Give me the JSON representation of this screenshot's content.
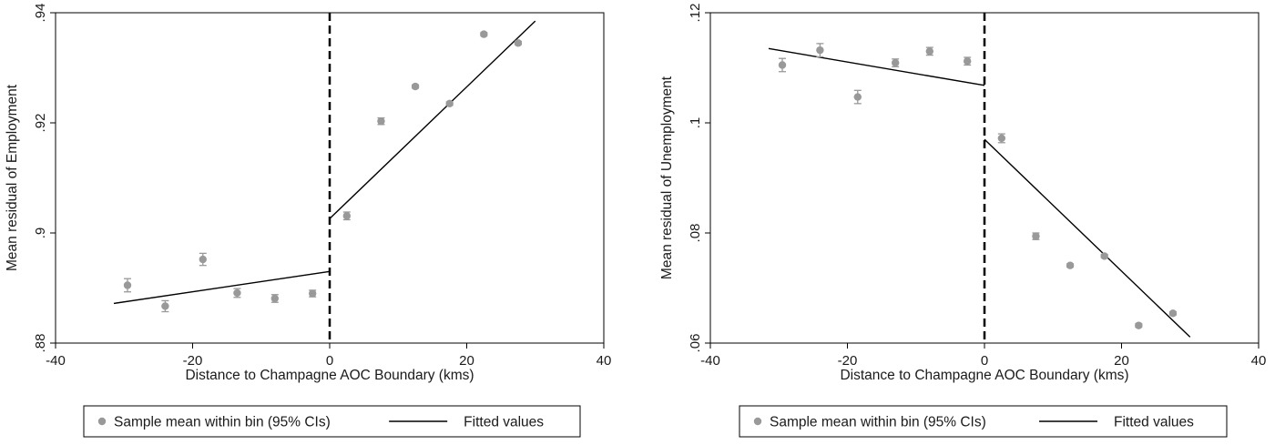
{
  "chart_data": [
    {
      "type": "scatter",
      "xlabel": "Distance to Champagne AOC Boundary (kms)",
      "ylabel": "Mean residual of Employment",
      "xlim": [
        -40,
        40
      ],
      "ylim": [
        0.88,
        0.94
      ],
      "x_ticks": [
        -40,
        -20,
        0,
        20,
        40
      ],
      "x_tick_labels": [
        "-40",
        "-20",
        "0",
        "20",
        "40"
      ],
      "y_ticks": [
        0.88,
        0.9,
        0.92,
        0.94
      ],
      "y_tick_labels": [
        ".88",
        ".9",
        ".92",
        ".94"
      ],
      "cutoff": 0,
      "series": [
        {
          "name": "Sample mean within bin (95% CIs)",
          "kind": "points",
          "color": "#999999",
          "x": [
            -29.5,
            -24,
            -18.5,
            -13.5,
            -8,
            -2.5,
            2.5,
            7.5,
            12.5,
            17.5,
            22.5,
            27.5
          ],
          "y": [
            0.8905,
            0.8867,
            0.8952,
            0.8891,
            0.8881,
            0.889,
            0.9031,
            0.9203,
            0.9266,
            0.9235,
            0.9361,
            0.9345
          ],
          "ci_low": [
            0.8893,
            0.8857,
            0.8941,
            0.8883,
            0.8874,
            0.8884,
            0.9024,
            0.9197,
            0.9263,
            0.9232,
            0.9358,
            0.9342
          ],
          "ci_high": [
            0.8917,
            0.8877,
            0.8963,
            0.8899,
            0.8888,
            0.8896,
            0.9038,
            0.9209,
            0.9269,
            0.9238,
            0.9364,
            0.9348
          ]
        },
        {
          "name": "Fitted values",
          "kind": "lines",
          "color": "#000000",
          "segments": [
            [
              [
                -31.5,
                0.8872
              ],
              [
                0,
                0.893
              ]
            ],
            [
              [
                0,
                0.9026
              ],
              [
                30,
                0.9385
              ]
            ]
          ]
        }
      ],
      "legend_position": "bottom"
    },
    {
      "type": "scatter",
      "xlabel": "Distance to Champagne AOC Boundary (kms)",
      "ylabel": "Mean residual of Unemployment",
      "xlim": [
        -40,
        40
      ],
      "ylim": [
        0.06,
        0.12
      ],
      "x_ticks": [
        -40,
        -20,
        0,
        20,
        40
      ],
      "x_tick_labels": [
        "-40",
        "-20",
        "0",
        "20",
        "40"
      ],
      "y_ticks": [
        0.06,
        0.08,
        0.1,
        0.12
      ],
      "y_tick_labels": [
        ".06",
        ".08",
        ".1",
        ".12"
      ],
      "cutoff": 0,
      "series": [
        {
          "name": "Sample mean within bin (95% CIs)",
          "kind": "points",
          "color": "#999999",
          "x": [
            -29.5,
            -24,
            -18.5,
            -13,
            -8,
            -2.5,
            2.5,
            7.5,
            12.5,
            17.5,
            22.5,
            27.5
          ],
          "y": [
            0.1105,
            0.1132,
            0.1047,
            0.1109,
            0.113,
            0.1112,
            0.0972,
            0.0794,
            0.0741,
            0.0758,
            0.0632,
            0.0654
          ],
          "ci_low": [
            0.1093,
            0.112,
            0.1035,
            0.1102,
            0.1123,
            0.1105,
            0.0964,
            0.0788,
            0.0738,
            0.0755,
            0.0629,
            0.0651
          ],
          "ci_high": [
            0.1117,
            0.1144,
            0.1059,
            0.1116,
            0.1137,
            0.1119,
            0.098,
            0.08,
            0.0744,
            0.0761,
            0.0635,
            0.0657
          ]
        },
        {
          "name": "Fitted values",
          "kind": "lines",
          "color": "#000000",
          "segments": [
            [
              [
                -31.5,
                0.1135
              ],
              [
                0,
                0.1068
              ]
            ],
            [
              [
                0,
                0.097
              ],
              [
                30,
                0.0611
              ]
            ]
          ]
        }
      ],
      "legend_position": "bottom"
    }
  ]
}
